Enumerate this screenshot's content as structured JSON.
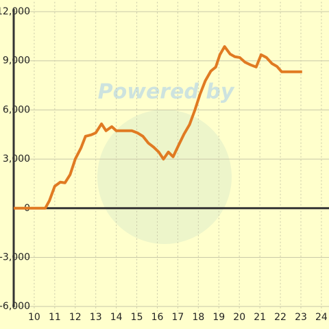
{
  "chart_data": {
    "type": "line",
    "watermark": "Powered by",
    "x": [
      9,
      10.54,
      10.74,
      11.0,
      11.27,
      11.5,
      11.75,
      12.0,
      12.28,
      12.5,
      12.78,
      13.0,
      13.28,
      13.5,
      13.78,
      14.0,
      14.76,
      15.03,
      15.3,
      15.56,
      15.83,
      16.07,
      16.3,
      16.54,
      16.77,
      17.04,
      17.3,
      17.57,
      17.84,
      18.08,
      18.34,
      18.61,
      18.85,
      19.05,
      19.28,
      19.55,
      19.78,
      20.02,
      20.28,
      20.55,
      20.82,
      21.06,
      21.32,
      21.59,
      21.83,
      22.06,
      23.06
    ],
    "series": [
      {
        "color": "#e07a22",
        "values": [
          0,
          0,
          460,
          1340,
          1590,
          1550,
          2050,
          3000,
          3680,
          4390,
          4480,
          4600,
          5150,
          4730,
          4980,
          4730,
          4730,
          4600,
          4390,
          3980,
          3720,
          3430,
          3000,
          3430,
          3140,
          3850,
          4520,
          5100,
          6020,
          6950,
          7780,
          8370,
          8620,
          9370,
          9870,
          9410,
          9250,
          9200,
          8910,
          8750,
          8620,
          9370,
          9200,
          8830,
          8660,
          8330,
          8330
        ]
      }
    ],
    "xlim": [
      9,
      24.37
    ],
    "ylim": [
      -6300,
      12600
    ],
    "xticks": [
      10,
      11,
      12,
      13,
      14,
      15,
      16,
      17,
      18,
      19,
      20,
      21,
      22,
      23,
      24
    ],
    "yticks": [
      {
        "value": -6000,
        "label": "-6,000"
      },
      {
        "value": -3000,
        "label": "-3,000"
      },
      0,
      {
        "value": 3000,
        "label": "3,000"
      },
      {
        "value": 6000,
        "label": "6,000"
      },
      {
        "value": 9000,
        "label": "9,000"
      },
      {
        "value": 12000,
        "label": "12,000"
      }
    ],
    "grid": true
  }
}
